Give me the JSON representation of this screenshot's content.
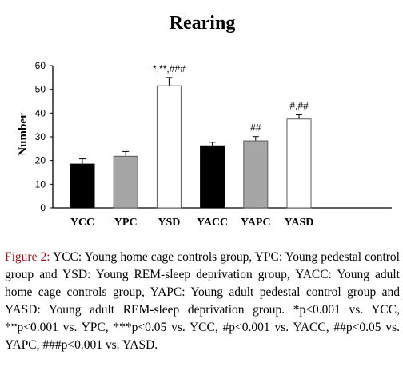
{
  "chart_data": {
    "type": "bar",
    "title": "Rearing",
    "ylabel": "Number",
    "xlabel": "",
    "ylim": [
      0,
      60
    ],
    "yticks": [
      0,
      10,
      20,
      30,
      40,
      50,
      60
    ],
    "categories": [
      "YCC",
      "YPC",
      "YSD",
      "YACC",
      "YAPC",
      "YASD"
    ],
    "values": [
      18.5,
      21.8,
      51.5,
      26.2,
      28.3,
      37.5
    ],
    "errors": [
      2.2,
      2.0,
      3.5,
      1.5,
      1.8,
      1.8
    ],
    "fills": [
      "#000000",
      "#a6a6a6",
      "#ffffff",
      "#000000",
      "#a6a6a6",
      "#ffffff"
    ],
    "annotations": [
      "",
      "",
      "*,**,###",
      "",
      "##",
      "#,##"
    ],
    "grid": false,
    "legend": "none"
  },
  "caption": {
    "label": "Figure 2:",
    "text": " YCC: Young home cage controls group, YPC: Young pedestal control group and YSD: Young REM-sleep deprivation group, YACC: Young adult home cage controls group, YAPC: Young adult pedestal control group and YASD: Young adult REM-sleep deprivation group. *p<0.001 vs. YCC, **p<0.001 vs. YPC, ***p<0.05 vs. YCC, #p<0.001 vs. YACC, ##p<0.05 vs. YAPC, ###p<0.001 vs. YASD."
  }
}
